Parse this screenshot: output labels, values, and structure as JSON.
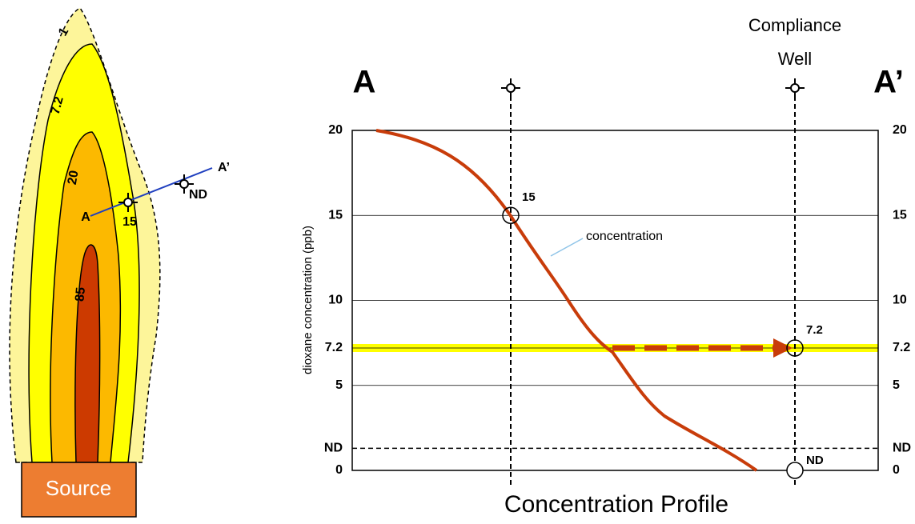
{
  "map": {
    "contours": [
      "1",
      "7.2",
      "20",
      "85"
    ],
    "section_start": "A",
    "section_end": "A’",
    "well_labels": [
      "15",
      "ND"
    ],
    "source": "Source"
  },
  "profile": {
    "type": "line",
    "title": "Concentration Profile",
    "ylabel": "dioxane concentration (ppb)",
    "section_start": "A",
    "section_end": "A’",
    "well_title": [
      "Compliance",
      "Well"
    ],
    "curve_label": "concentration",
    "ylim": [
      0,
      20
    ],
    "yticks": [
      0,
      {
        "value": 1.3,
        "label": "ND"
      },
      5,
      7.2,
      10,
      15,
      20
    ],
    "wells": [
      15,
      7.2
    ],
    "nd_reading": "ND",
    "color": "#c83c0a"
  }
}
